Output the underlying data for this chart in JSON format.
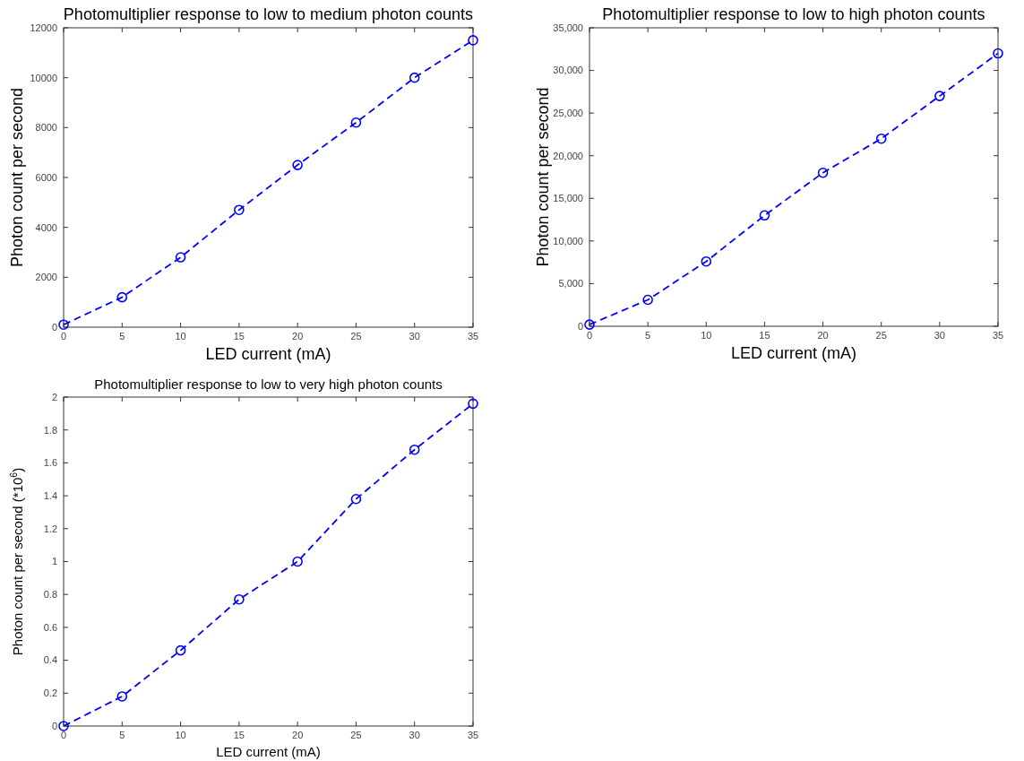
{
  "chart_data": [
    {
      "type": "line",
      "title": "Photomultiplier response to low to medium photon counts",
      "xlabel": "LED current (mA)",
      "ylabel": "Photon count per second",
      "x": [
        0,
        5,
        10,
        15,
        20,
        25,
        30,
        35
      ],
      "xlim": [
        0,
        35
      ],
      "xticks": [
        0,
        5,
        10,
        15,
        20,
        25,
        30,
        35
      ],
      "ylim": [
        0,
        12000
      ],
      "yticks": [
        0,
        2000,
        4000,
        6000,
        8000,
        10000,
        12000
      ],
      "series": [
        {
          "color": "#0000ff",
          "values": [
            100,
            1200,
            2800,
            4700,
            6500,
            8200,
            10000,
            11500
          ]
        }
      ],
      "marker": "circle",
      "line_style": "dashed"
    },
    {
      "type": "line",
      "title": "Photomultiplier response to low to high photon counts",
      "xlabel": "LED current (mA)",
      "ylabel": "Photon count per second",
      "x": [
        0,
        5,
        10,
        15,
        20,
        25,
        30,
        35
      ],
      "xlim": [
        0,
        35
      ],
      "xticks": [
        0,
        5,
        10,
        15,
        20,
        25,
        30,
        35
      ],
      "ylim": [
        0,
        35000
      ],
      "yticks": [
        0,
        {
          "value": 5000,
          "label": "5,000"
        },
        {
          "value": 10000,
          "label": "10,000"
        },
        {
          "value": 15000,
          "label": "15,000"
        },
        {
          "value": 20000,
          "label": "20,000"
        },
        {
          "value": 25000,
          "label": "25,000"
        },
        {
          "value": 30000,
          "label": "30,000"
        },
        {
          "value": 35000,
          "label": "35,000"
        }
      ],
      "series": [
        {
          "color": "#0000ff",
          "values": [
            200,
            3100,
            7600,
            13000,
            18000,
            22000,
            27000,
            32000
          ]
        }
      ],
      "marker": "circle",
      "line_style": "dashed"
    },
    {
      "type": "line",
      "title": "Photomultiplier response to low to very high photon counts",
      "xlabel": "LED current (mA)",
      "ylabel": "Photon count per second (*10$^{6}$)",
      "x": [
        0,
        5,
        10,
        15,
        20,
        25,
        30,
        35
      ],
      "xlim": [
        0,
        35
      ],
      "xticks": [
        0,
        5,
        10,
        15,
        20,
        25,
        30,
        35
      ],
      "ylim": [
        0,
        2
      ],
      "yticks": [
        0,
        0.2,
        0.4,
        0.6,
        0.8,
        1,
        1.2,
        1.4,
        1.6,
        1.8,
        2
      ],
      "series": [
        {
          "color": "#0000ff",
          "values": [
            0,
            0.18,
            0.46,
            0.77,
            1,
            1.38,
            1.68,
            1.96
          ]
        }
      ],
      "marker": "circle",
      "line_style": "dashed"
    }
  ]
}
